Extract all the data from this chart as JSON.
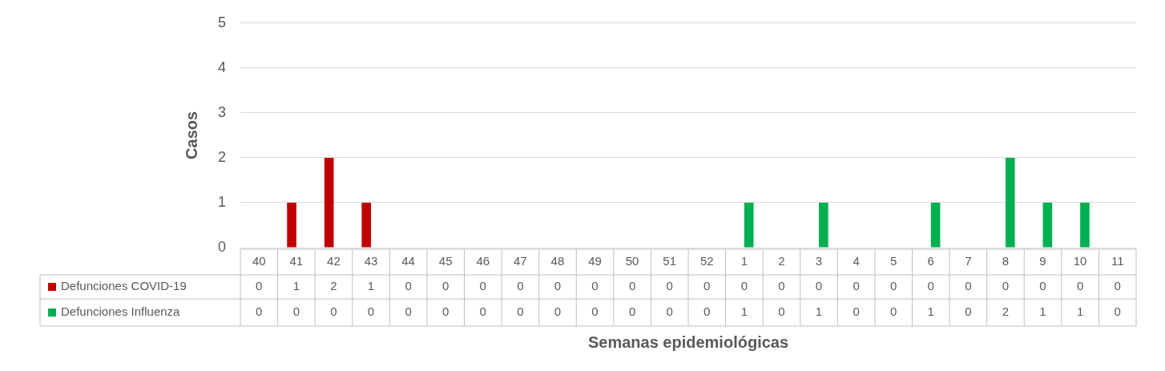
{
  "chart_data": {
    "type": "bar",
    "xlabel": "Semanas epidemiológicas",
    "ylabel": "Casos",
    "categories": [
      "40",
      "41",
      "42",
      "43",
      "44",
      "45",
      "46",
      "47",
      "48",
      "49",
      "50",
      "51",
      "52",
      "1",
      "2",
      "3",
      "4",
      "5",
      "6",
      "7",
      "8",
      "9",
      "10",
      "11"
    ],
    "series": [
      {
        "name": "Defunciones COVID-19",
        "color": "#c00000",
        "values": [
          0,
          1,
          2,
          1,
          0,
          0,
          0,
          0,
          0,
          0,
          0,
          0,
          0,
          0,
          0,
          0,
          0,
          0,
          0,
          0,
          0,
          0,
          0,
          0
        ]
      },
      {
        "name": "Defunciones Influenza",
        "color": "#00b050",
        "values": [
          0,
          0,
          0,
          0,
          0,
          0,
          0,
          0,
          0,
          0,
          0,
          0,
          0,
          1,
          0,
          1,
          0,
          0,
          1,
          0,
          2,
          1,
          1,
          0
        ]
      }
    ],
    "ylim": [
      0,
      5
    ],
    "yticks": [
      0,
      1,
      2,
      3,
      4,
      5
    ],
    "grid": "y",
    "legend": "bottom",
    "data_labels": true
  }
}
